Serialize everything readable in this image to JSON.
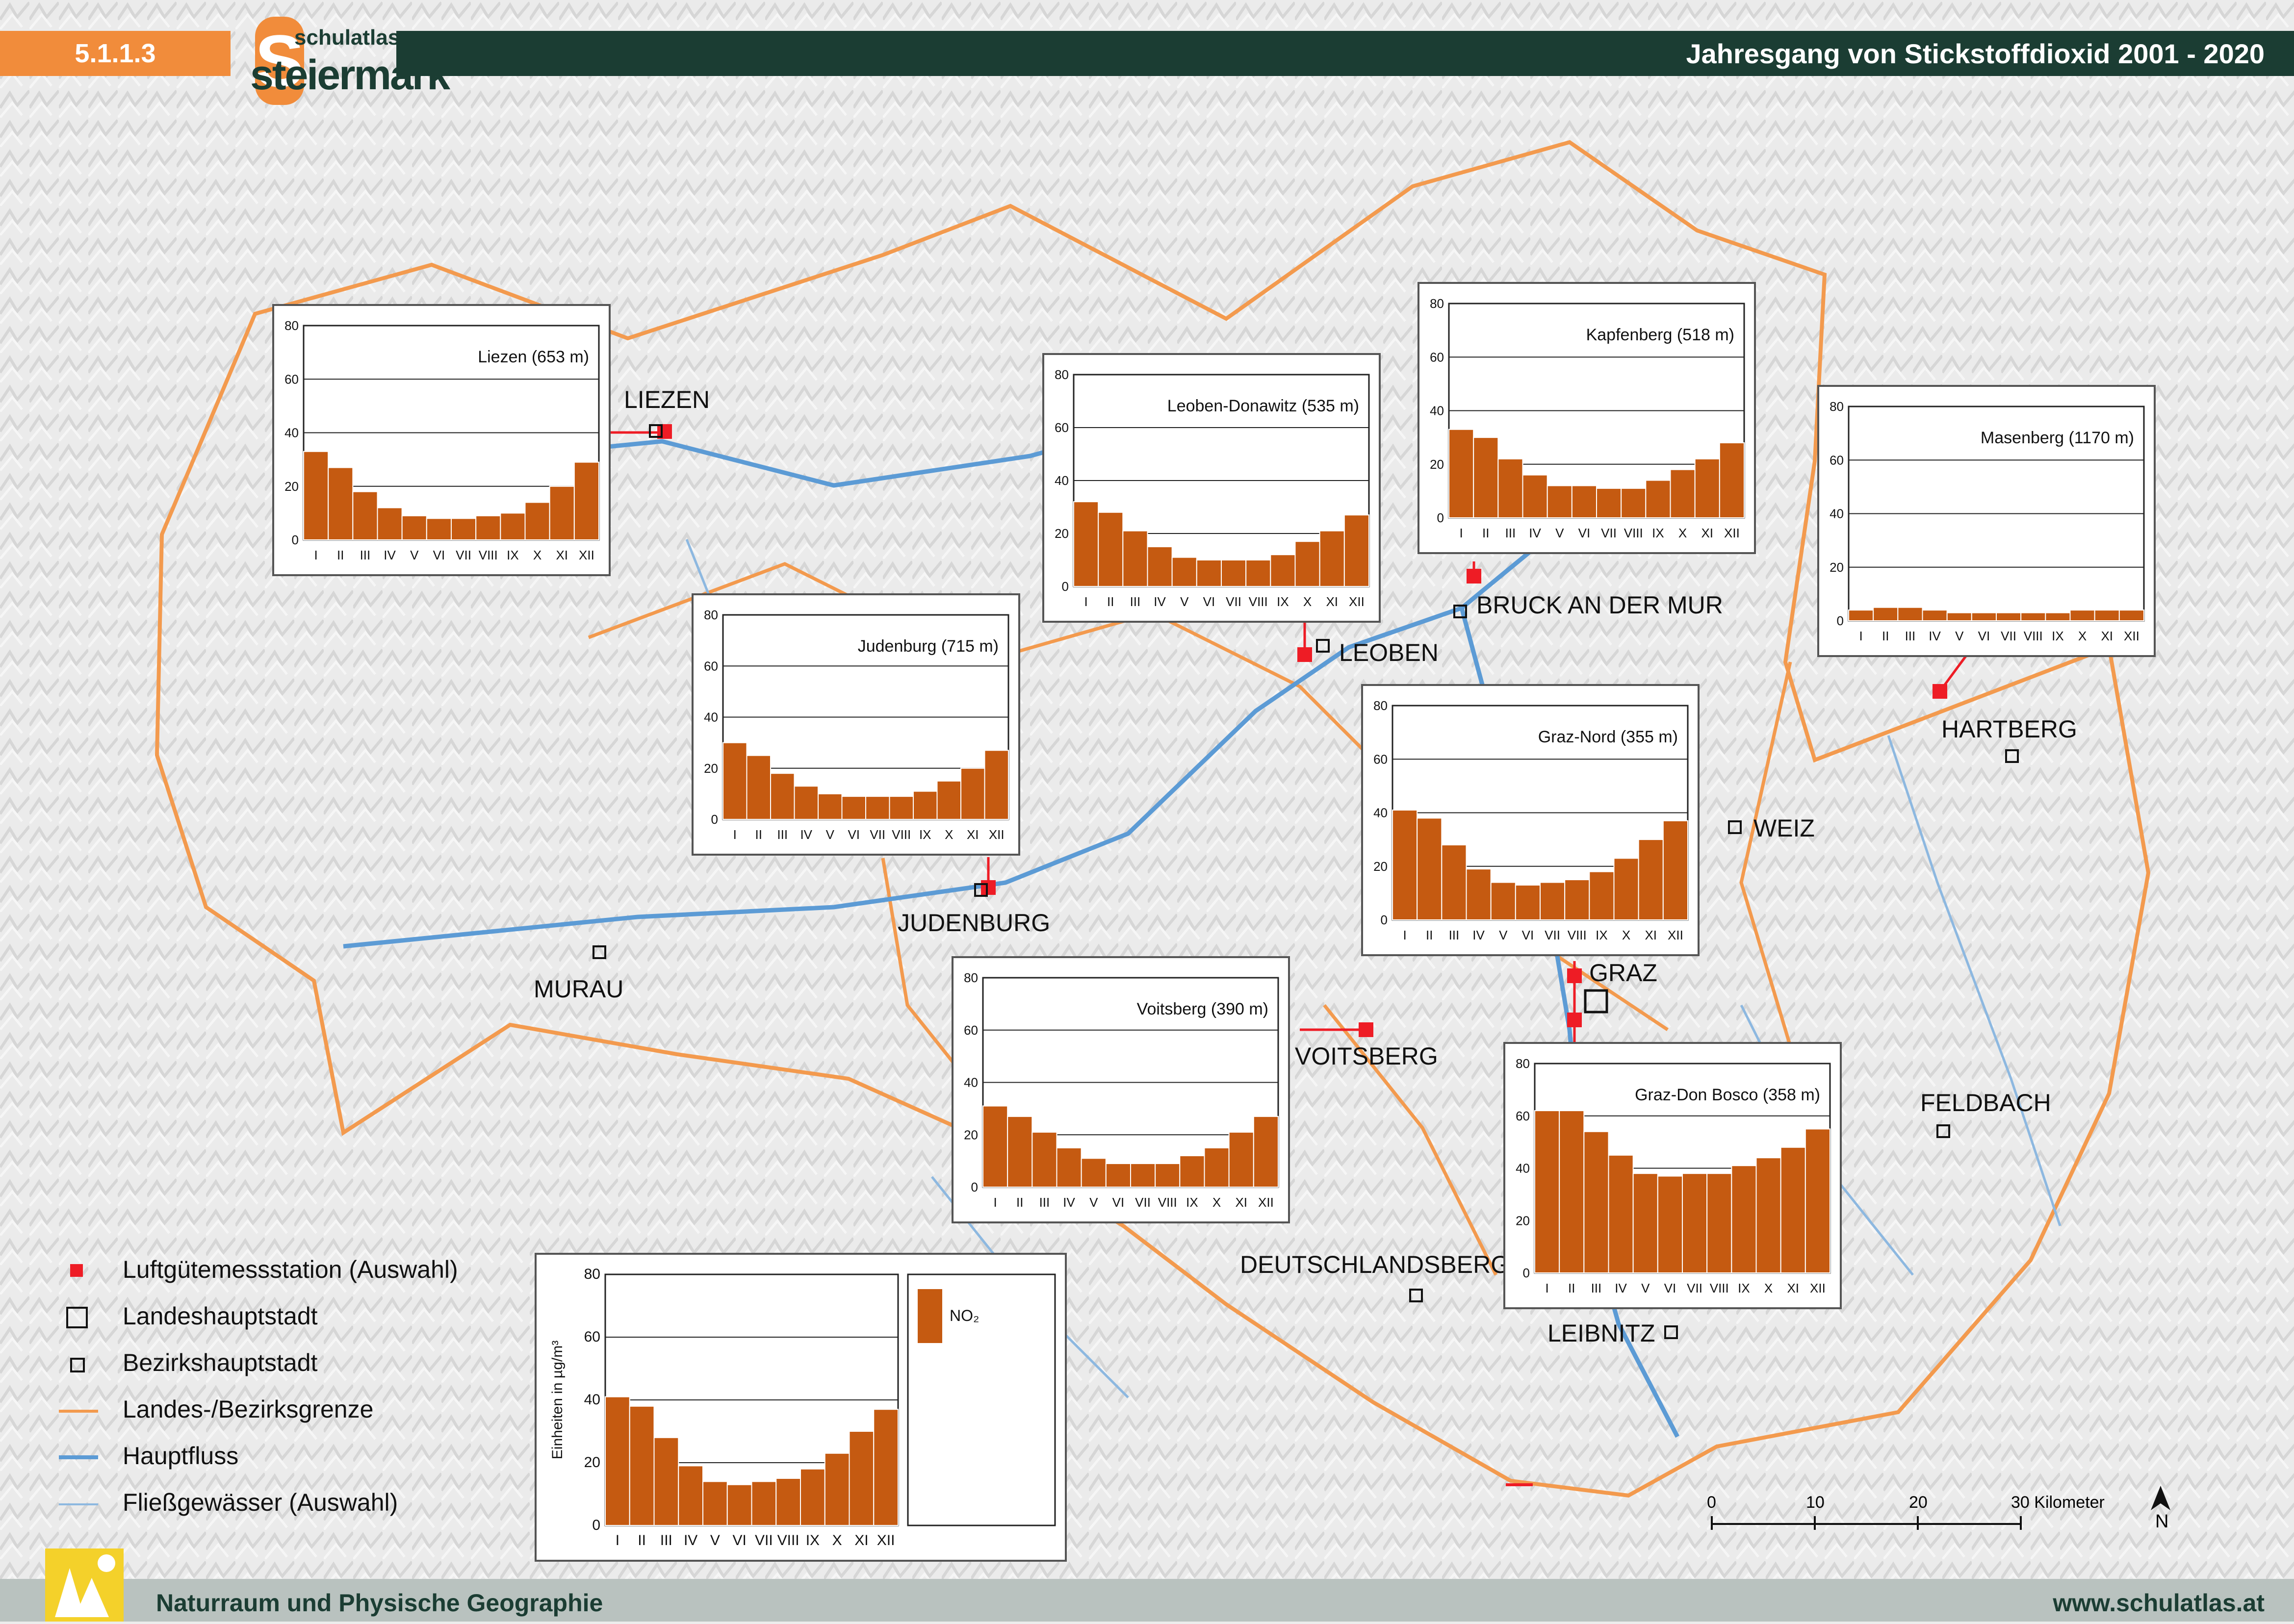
{
  "header": {
    "number": "5.1.1.3",
    "logo_top": "schulatlas",
    "logo_bottom": "steiermark",
    "title": "Jahresgang von Stickstoffdioxid 2001 - 2020"
  },
  "footer": {
    "left": "Naturraum und Physische Geographie",
    "right": "www.schulatlas.at"
  },
  "colors": {
    "accent_orange": "#f18c3b",
    "header_dark": "#1b3d33",
    "bar_fill": "#c55a11",
    "station_red": "#ee1c25",
    "border_orange": "#f39a4e",
    "river_blue": "#5c9bd5",
    "stream_blue": "#8db8e0"
  },
  "map_labels": {
    "liezen": "LIEZEN",
    "leoben": "LEOBEN",
    "bruck": "BRUCK AN DER MUR",
    "hartberg": "HARTBERG",
    "weiz": "WEIZ",
    "judenburg": "JUDENBURG",
    "murau": "MURAU",
    "graz": "GRAZ",
    "voitsberg": "VOITSBERG",
    "feldbach": "FELDBACH",
    "deutschlandsberg": "DEUTSCHLANDSBERG",
    "leibnitz": "LEIBNITZ"
  },
  "legend": {
    "items": [
      {
        "symbol": "red-square",
        "label": "Luftgütemessstation (Auswahl)"
      },
      {
        "symbol": "large-square",
        "label": "Landeshauptstadt"
      },
      {
        "symbol": "small-square",
        "label": "Bezirkshauptstadt"
      },
      {
        "symbol": "orange-line",
        "label": "Landes-/Bezirksgrenze"
      },
      {
        "symbol": "blue-thick-line",
        "label": "Hauptfluss"
      },
      {
        "symbol": "blue-thin-line",
        "label": "Fließgewässer (Auswahl)"
      }
    ]
  },
  "scale_bar": {
    "ticks": [
      "0",
      "10",
      "20",
      "30 Kilometer"
    ],
    "north": "N"
  },
  "chart_data": [
    {
      "type": "bar",
      "title": "Liezen (653 m)",
      "categories": [
        "I",
        "II",
        "III",
        "IV",
        "V",
        "VI",
        "VII",
        "VIII",
        "IX",
        "X",
        "XI",
        "XII"
      ],
      "values": [
        33,
        27,
        18,
        12,
        9,
        8,
        8,
        9,
        10,
        14,
        20,
        29
      ],
      "ylim": [
        0,
        80
      ],
      "yticks": [
        "0",
        "20",
        "40",
        "60",
        "80"
      ]
    },
    {
      "type": "bar",
      "title": "Leoben-Donawitz (535 m)",
      "categories": [
        "I",
        "II",
        "III",
        "IV",
        "V",
        "VI",
        "VII",
        "VIII",
        "IX",
        "X",
        "XI",
        "XII"
      ],
      "values": [
        32,
        28,
        21,
        15,
        11,
        10,
        10,
        10,
        12,
        17,
        21,
        27
      ],
      "ylim": [
        0,
        80
      ],
      "yticks": [
        "0",
        "20",
        "40",
        "60",
        "80"
      ]
    },
    {
      "type": "bar",
      "title": "Kapfenberg (518 m)",
      "categories": [
        "I",
        "II",
        "III",
        "IV",
        "V",
        "VI",
        "VII",
        "VIII",
        "IX",
        "X",
        "XI",
        "XII"
      ],
      "values": [
        33,
        30,
        22,
        16,
        12,
        12,
        11,
        11,
        14,
        18,
        22,
        28
      ],
      "ylim": [
        0,
        80
      ],
      "yticks": [
        "0",
        "20",
        "40",
        "60",
        "80"
      ]
    },
    {
      "type": "bar",
      "title": "Masenberg (1170 m)",
      "categories": [
        "I",
        "II",
        "III",
        "IV",
        "V",
        "VI",
        "VII",
        "VIII",
        "IX",
        "X",
        "XI",
        "XII"
      ],
      "values": [
        4,
        5,
        5,
        4,
        3,
        3,
        3,
        3,
        3,
        4,
        4,
        4
      ],
      "ylim": [
        0,
        80
      ],
      "yticks": [
        "0",
        "20",
        "40",
        "60",
        "80"
      ]
    },
    {
      "type": "bar",
      "title": "Judenburg (715 m)",
      "categories": [
        "I",
        "II",
        "III",
        "IV",
        "V",
        "VI",
        "VII",
        "VIII",
        "IX",
        "X",
        "XI",
        "XII"
      ],
      "values": [
        30,
        25,
        18,
        13,
        10,
        9,
        9,
        9,
        11,
        15,
        20,
        27
      ],
      "ylim": [
        0,
        80
      ],
      "yticks": [
        "0",
        "20",
        "40",
        "60",
        "80"
      ]
    },
    {
      "type": "bar",
      "title": "Graz-Nord (355 m)",
      "categories": [
        "I",
        "II",
        "III",
        "IV",
        "V",
        "VI",
        "VII",
        "VIII",
        "IX",
        "X",
        "XI",
        "XII"
      ],
      "values": [
        41,
        38,
        28,
        19,
        14,
        13,
        14,
        15,
        18,
        23,
        30,
        37
      ],
      "ylim": [
        0,
        80
      ],
      "yticks": [
        "0",
        "20",
        "40",
        "60",
        "80"
      ]
    },
    {
      "type": "bar",
      "title": "Voitsberg (390 m)",
      "categories": [
        "I",
        "II",
        "III",
        "IV",
        "V",
        "VI",
        "VII",
        "VIII",
        "IX",
        "X",
        "XI",
        "XII"
      ],
      "values": [
        31,
        27,
        21,
        15,
        11,
        9,
        9,
        9,
        12,
        15,
        21,
        27
      ],
      "ylim": [
        0,
        80
      ],
      "yticks": [
        "0",
        "20",
        "40",
        "60",
        "80"
      ]
    },
    {
      "type": "bar",
      "title": "Graz-Don Bosco (358 m)",
      "categories": [
        "I",
        "II",
        "III",
        "IV",
        "V",
        "VI",
        "VII",
        "VIII",
        "IX",
        "X",
        "XI",
        "XII"
      ],
      "values": [
        62,
        62,
        54,
        45,
        38,
        37,
        38,
        38,
        41,
        44,
        48,
        55
      ],
      "ylim": [
        0,
        80
      ],
      "yticks": [
        "0",
        "20",
        "40",
        "60",
        "80"
      ]
    },
    {
      "type": "bar",
      "title": "",
      "legend": "NO₂",
      "ylabel": "Einheiten in µg/m³",
      "categories": [
        "I",
        "II",
        "III",
        "IV",
        "V",
        "VI",
        "VII",
        "VIII",
        "IX",
        "X",
        "XI",
        "XII"
      ],
      "values": [
        41,
        38,
        28,
        19,
        14,
        13,
        14,
        15,
        18,
        23,
        30,
        37
      ],
      "ylim": [
        0,
        80
      ],
      "yticks": [
        "0",
        "20",
        "40",
        "60",
        "80"
      ]
    }
  ]
}
